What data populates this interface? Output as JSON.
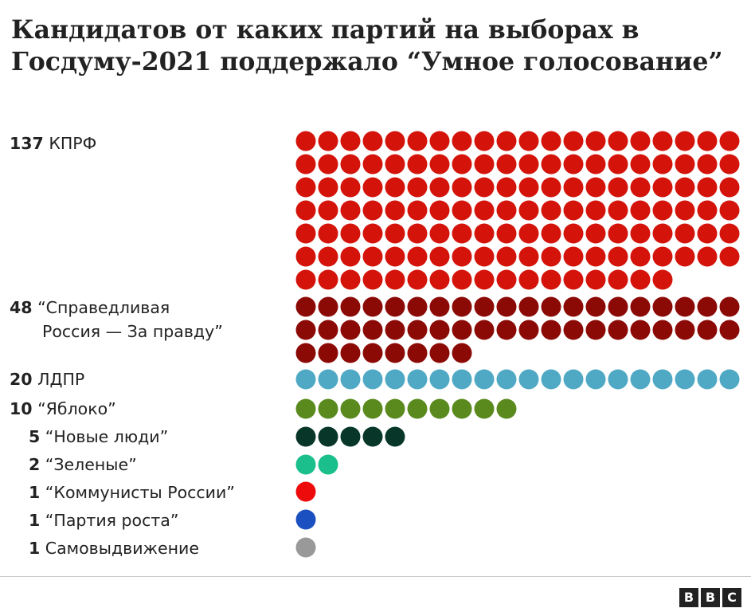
{
  "title": "Кандидатов от каких партий на выборах в Госдуму-2021 поддержало “Умное голосование”",
  "logo": [
    "B",
    "B",
    "C"
  ],
  "chart_data": {
    "type": "waffle",
    "title": "Кандидатов от каких партий на выборах в Госдуму-2021 поддержало “Умное голосование”",
    "categories": [
      "КПРФ",
      "“Справедливая Россия — За правду”",
      "ЛДПР",
      "“Яблоко”",
      "“Новые люди”",
      "“Зеленые”",
      "“Коммунисты России”",
      "“Партия роста”",
      "Самовыдвижение"
    ],
    "values": [
      137,
      48,
      20,
      10,
      5,
      2,
      1,
      1,
      1
    ],
    "colors": [
      "#d4140b",
      "#8c0a06",
      "#4fa9c4",
      "#5a8a1e",
      "#08372a",
      "#1abf8b",
      "#ee0b0b",
      "#1b50c0",
      "#999999"
    ],
    "rows": [
      {
        "value": "137",
        "line1": "КПРФ",
        "line2": ""
      },
      {
        "value": "48",
        "line1": "“Справедливая",
        "line2": "Россия — За правду”"
      },
      {
        "value": "20",
        "line1": "ЛДПР",
        "line2": ""
      },
      {
        "value": "10",
        "line1": "“Яблоко”",
        "line2": ""
      },
      {
        "value": "5",
        "line1": "“Новые люди”",
        "line2": ""
      },
      {
        "value": "2",
        "line1": "“Зеленые”",
        "line2": ""
      },
      {
        "value": "1",
        "line1": "“Коммунисты России”",
        "line2": ""
      },
      {
        "value": "1",
        "line1": "“Партия роста”",
        "line2": ""
      },
      {
        "value": "1",
        "line1": "Самовыдвижение",
        "line2": ""
      }
    ]
  }
}
